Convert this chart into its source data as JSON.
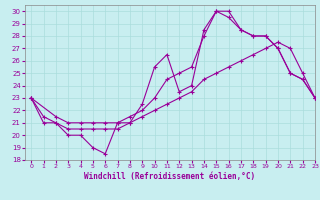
{
  "xlabel": "Windchill (Refroidissement éolien,°C)",
  "xlim": [
    -0.5,
    23
  ],
  "ylim": [
    18,
    30.5
  ],
  "xticks": [
    0,
    1,
    2,
    3,
    4,
    5,
    6,
    7,
    8,
    9,
    10,
    11,
    12,
    13,
    14,
    15,
    16,
    17,
    18,
    19,
    20,
    21,
    22,
    23
  ],
  "yticks": [
    18,
    19,
    20,
    21,
    22,
    23,
    24,
    25,
    26,
    27,
    28,
    29,
    30
  ],
  "bg_color": "#c8eef0",
  "line_color": "#990099",
  "grid_color": "#aadddd",
  "line1_x": [
    0,
    1,
    2,
    3,
    4,
    5,
    6,
    7,
    8,
    9,
    10,
    11,
    12,
    13,
    14,
    15,
    16,
    17,
    18,
    19,
    20,
    21,
    22,
    23
  ],
  "line1_y": [
    23,
    21.5,
    21,
    20,
    20,
    19,
    18.5,
    21,
    21,
    22.5,
    25.5,
    26.5,
    23.5,
    24,
    28.5,
    30,
    30,
    28.5,
    28,
    28,
    27,
    25,
    24.5,
    23
  ],
  "line2_x": [
    0,
    2,
    3,
    4,
    5,
    6,
    7,
    8,
    9,
    10,
    11,
    12,
    13,
    14,
    15,
    16,
    17,
    18,
    19,
    20,
    21,
    22,
    23
  ],
  "line2_y": [
    23,
    21.5,
    21,
    21,
    21,
    21,
    21,
    21.5,
    22,
    23,
    24.5,
    25,
    25.5,
    28,
    30,
    29.5,
    28.5,
    28,
    28,
    27,
    25,
    24.5,
    23
  ],
  "line3_x": [
    0,
    1,
    2,
    3,
    4,
    5,
    6,
    7,
    8,
    9,
    10,
    11,
    12,
    13,
    14,
    15,
    16,
    17,
    18,
    19,
    20,
    21,
    22,
    23
  ],
  "line3_y": [
    23,
    21,
    21,
    20.5,
    20.5,
    20.5,
    20.5,
    20.5,
    21,
    21.5,
    22,
    22.5,
    23,
    23.5,
    24.5,
    25,
    25.5,
    26,
    26.5,
    27,
    27.5,
    27,
    25,
    23
  ]
}
